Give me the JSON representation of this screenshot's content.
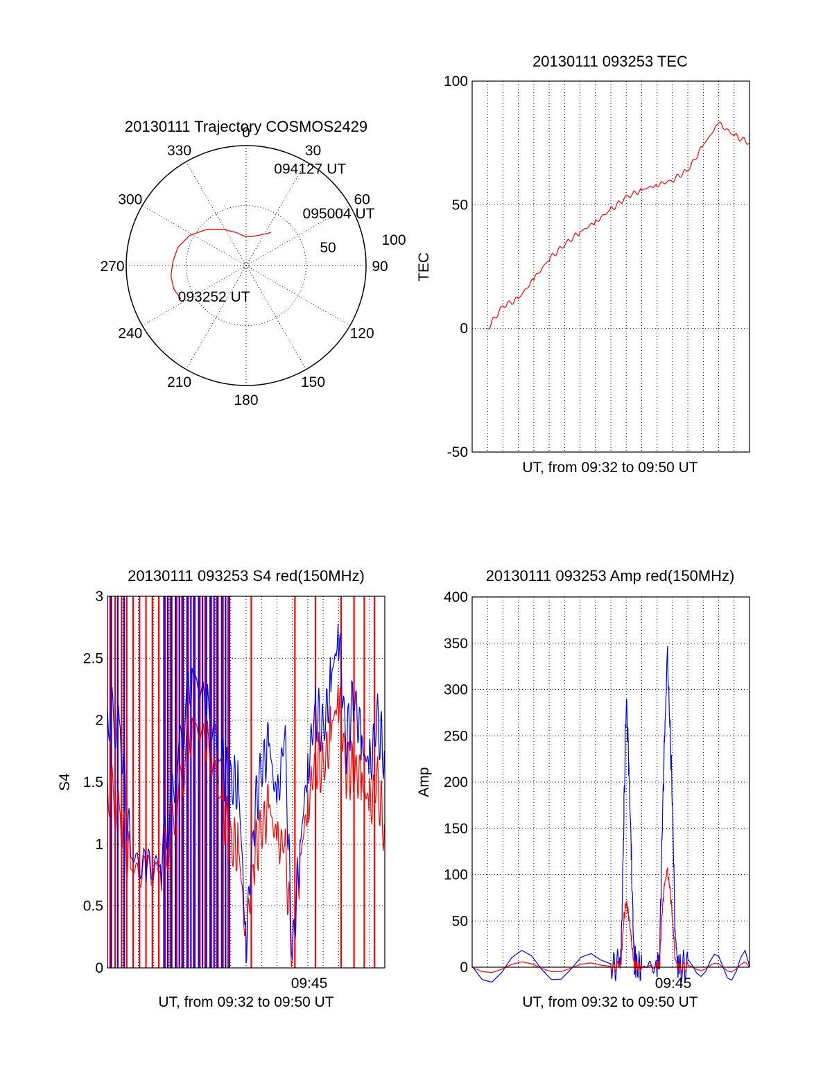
{
  "colors": {
    "red": "#ff0000",
    "blue": "#0000ff",
    "axis": "#000000",
    "grid": "#000000"
  },
  "chart_data": [
    {
      "id": "polar",
      "type": "scatter",
      "title": "20130111 Trajectory COSMOS2429",
      "angle_labels": [
        "0",
        "30",
        "60",
        "90",
        "120",
        "150",
        "180",
        "210",
        "240",
        "270",
        "300",
        "330"
      ],
      "radius_labels": [
        "50",
        "100"
      ],
      "trajectory_points": [
        {
          "az": 243,
          "el": 35
        },
        {
          "az": 252,
          "el": 33
        },
        {
          "az": 262,
          "el": 33
        },
        {
          "az": 273,
          "el": 35
        },
        {
          "az": 285,
          "el": 37
        },
        {
          "az": 298,
          "el": 42
        },
        {
          "az": 313,
          "el": 50
        },
        {
          "az": 328,
          "el": 58
        },
        {
          "az": 343,
          "el": 64
        },
        {
          "az": 357,
          "el": 68
        },
        {
          "az": 10,
          "el": 68
        },
        {
          "az": 24,
          "el": 65
        },
        {
          "az": 37,
          "el": 59
        }
      ],
      "annotations": [
        {
          "text": "093252 UT",
          "az": 246,
          "el": 34
        },
        {
          "text": "094127 UT",
          "az": 16,
          "el": 14
        },
        {
          "text": "095004 UT",
          "az": 47,
          "el": 32
        }
      ]
    },
    {
      "id": "tec",
      "type": "line",
      "title": "20130111 093253 TEC",
      "xlabel": "UT, from 09:32 to 09:50 UT",
      "ylabel": "TEC",
      "xlim": [
        "09:32",
        "09:50"
      ],
      "ylim": [
        -50,
        100
      ],
      "yticks": [
        "-50",
        "0",
        "50",
        "100"
      ],
      "grid": true,
      "series": [
        {
          "color": "red",
          "x": [
            "09:33:00",
            "09:34:00",
            "09:35:00",
            "09:36:00",
            "09:37:00",
            "09:38:00",
            "09:39:00",
            "09:40:00",
            "09:41:00",
            "09:42:00",
            "09:43:00",
            "09:44:00",
            "09:45:00",
            "09:46:00",
            "09:47:00",
            "09:48:00",
            "09:49:00",
            "09:50:00"
          ],
          "values": [
            0,
            9,
            12,
            20,
            28,
            34,
            39,
            43,
            48,
            53,
            56,
            58,
            60,
            64,
            74,
            83,
            78,
            75
          ]
        }
      ]
    },
    {
      "id": "s4",
      "type": "line",
      "title": "20130111 093253 S4 red(150MHz)",
      "xlabel": "UT, from 09:32 to 09:50 UT",
      "ylabel": "S4",
      "xlim": [
        "09:32",
        "09:50"
      ],
      "ylim": [
        0,
        3
      ],
      "yticks": [
        "0",
        "0.5",
        "1",
        "1.5",
        "2",
        "2.5",
        "3"
      ],
      "xticks": [
        "09:45"
      ],
      "grid": true,
      "series": [
        {
          "color": "blue",
          "x": [
            "09:32:00",
            "09:32:50",
            "09:33:30",
            "09:34:30",
            "09:35:30",
            "09:36:30",
            "09:37:30",
            "09:38:30",
            "09:39:30",
            "09:40:00",
            "09:40:30",
            "09:41:00",
            "09:41:30",
            "09:42:00",
            "09:42:30",
            "09:43:00",
            "09:43:30",
            "09:44:00",
            "09:44:30",
            "09:45:00",
            "09:45:30",
            "09:46:00",
            "09:46:30",
            "09:47:00",
            "09:47:30",
            "09:48:00",
            "09:48:30",
            "09:49:00",
            "09:49:30",
            "09:50:00"
          ],
          "values": [
            2.1,
            1.9,
            0.9,
            0.8,
            0.85,
            1.6,
            2.4,
            2.1,
            1.6,
            1.5,
            1.5,
            0.2,
            1.2,
            1.6,
            1.8,
            1.3,
            1.9,
            0.1,
            1.0,
            1.6,
            2.1,
            1.9,
            2.3,
            2.7,
            1.8,
            2.2,
            1.8,
            1.6,
            2.0,
            1.7
          ]
        },
        {
          "color": "red",
          "x": [
            "09:32:00",
            "09:32:50",
            "09:33:30",
            "09:34:30",
            "09:35:30",
            "09:36:30",
            "09:37:30",
            "09:38:30",
            "09:39:30",
            "09:40:00",
            "09:40:30",
            "09:41:00",
            "09:41:30",
            "09:42:00",
            "09:42:30",
            "09:43:00",
            "09:43:30",
            "09:44:00",
            "09:44:30",
            "09:45:00",
            "09:45:30",
            "09:46:00",
            "09:46:30",
            "09:47:00",
            "09:47:30",
            "09:48:00",
            "09:48:30",
            "09:49:00",
            "09:49:30",
            "09:50:00"
          ],
          "values": [
            1.5,
            1.2,
            0.8,
            0.75,
            0.8,
            1.3,
            2.0,
            1.8,
            1.3,
            1.0,
            1.0,
            0.2,
            0.9,
            1.1,
            1.3,
            1.0,
            1.0,
            0.1,
            0.9,
            1.3,
            1.7,
            1.6,
            1.9,
            2.2,
            1.6,
            1.6,
            1.5,
            1.3,
            1.5,
            1.1
          ]
        }
      ],
      "spikes": {
        "blue": [
          "09:32:15",
          "09:32:40",
          "09:33:05",
          "09:35:40",
          "09:35:55",
          "09:36:10",
          "09:36:25",
          "09:36:40",
          "09:36:55",
          "09:37:10",
          "09:37:25",
          "09:37:40",
          "09:37:55",
          "09:38:10",
          "09:38:25",
          "09:38:40",
          "09:38:55",
          "09:39:10",
          "09:39:25",
          "09:39:40",
          "09:39:55"
        ],
        "red": [
          "09:32:10",
          "09:32:30",
          "09:32:55",
          "09:33:15",
          "09:33:40",
          "09:34:05",
          "09:34:30",
          "09:34:55",
          "09:35:20",
          "09:35:45",
          "09:36:05",
          "09:36:30",
          "09:36:50",
          "09:37:15",
          "09:37:35",
          "09:38:00",
          "09:38:20",
          "09:38:45",
          "09:39:05",
          "09:39:30",
          "09:39:50",
          "09:41:20",
          "09:44:10",
          "09:45:30",
          "09:47:10",
          "09:48:00",
          "09:48:40",
          "09:49:20"
        ]
      }
    },
    {
      "id": "amp",
      "type": "line",
      "title": "20130111 093253 Amp red(150MHz)",
      "xlabel": "UT, from 09:32 to 09:50 UT",
      "ylabel": "Amp",
      "xlim": [
        "09:32",
        "09:50"
      ],
      "ylim": [
        0,
        400
      ],
      "yticks": [
        "0",
        "50",
        "100",
        "150",
        "200",
        "250",
        "300",
        "350",
        "400"
      ],
      "xticks": [
        "09:45"
      ],
      "grid": true,
      "series": [
        {
          "color": "blue",
          "x": [
            "09:32:00",
            "09:41:00",
            "09:41:30",
            "09:41:40",
            "09:41:50",
            "09:42:00",
            "09:42:10",
            "09:42:20",
            "09:42:30",
            "09:42:40",
            "09:43:00",
            "09:44:00",
            "09:44:10",
            "09:44:20",
            "09:44:30",
            "09:44:40",
            "09:44:50",
            "09:45:00",
            "09:45:10",
            "09:45:20",
            "09:45:30",
            "09:46:00",
            "09:50:00"
          ],
          "values": [
            1,
            1,
            2,
            10,
            150,
            290,
            220,
            120,
            10,
            2,
            1,
            2,
            10,
            150,
            250,
            340,
            260,
            180,
            40,
            2,
            1,
            1,
            1
          ]
        },
        {
          "color": "red",
          "x": [
            "09:32:00",
            "09:41:00",
            "09:41:30",
            "09:41:40",
            "09:41:50",
            "09:42:00",
            "09:42:10",
            "09:42:20",
            "09:42:30",
            "09:42:40",
            "09:43:00",
            "09:44:00",
            "09:44:10",
            "09:44:20",
            "09:44:30",
            "09:44:40",
            "09:44:50",
            "09:45:00",
            "09:45:10",
            "09:45:20",
            "09:45:30",
            "09:46:00",
            "09:50:00"
          ],
          "values": [
            0,
            0,
            1,
            5,
            50,
            70,
            55,
            30,
            3,
            1,
            0,
            1,
            5,
            60,
            90,
            105,
            85,
            55,
            10,
            1,
            0,
            0,
            0
          ]
        }
      ]
    }
  ]
}
